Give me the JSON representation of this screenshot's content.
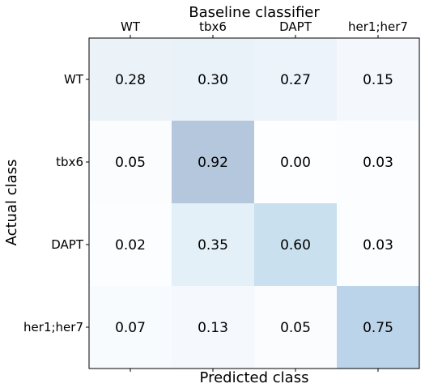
{
  "chart_data": {
    "type": "heatmap",
    "title": "Baseline classifier",
    "xlabel": "Predicted class",
    "ylabel": "Actual class",
    "x_categories": [
      "WT",
      "tbx6",
      "DAPT",
      "her1;her7"
    ],
    "y_categories": [
      "WT",
      "tbx6",
      "DAPT",
      "her1;her7"
    ],
    "x_tick_position": "top",
    "values": [
      [
        0.28,
        0.3,
        0.27,
        0.15
      ],
      [
        0.05,
        0.92,
        0.0,
        0.03
      ],
      [
        0.02,
        0.35,
        0.6,
        0.03
      ],
      [
        0.07,
        0.13,
        0.05,
        0.75
      ]
    ],
    "value_labels": [
      [
        "0.28",
        "0.30",
        "0.27",
        "0.15"
      ],
      [
        "0.05",
        "0.92",
        "0.00",
        "0.03"
      ],
      [
        "0.02",
        "0.35",
        "0.60",
        "0.03"
      ],
      [
        "0.07",
        "0.13",
        "0.05",
        "0.75"
      ]
    ],
    "color_range": [
      0,
      1
    ],
    "colormap": "Blues",
    "alpha": 0.3,
    "grid": false,
    "legend": "none"
  }
}
